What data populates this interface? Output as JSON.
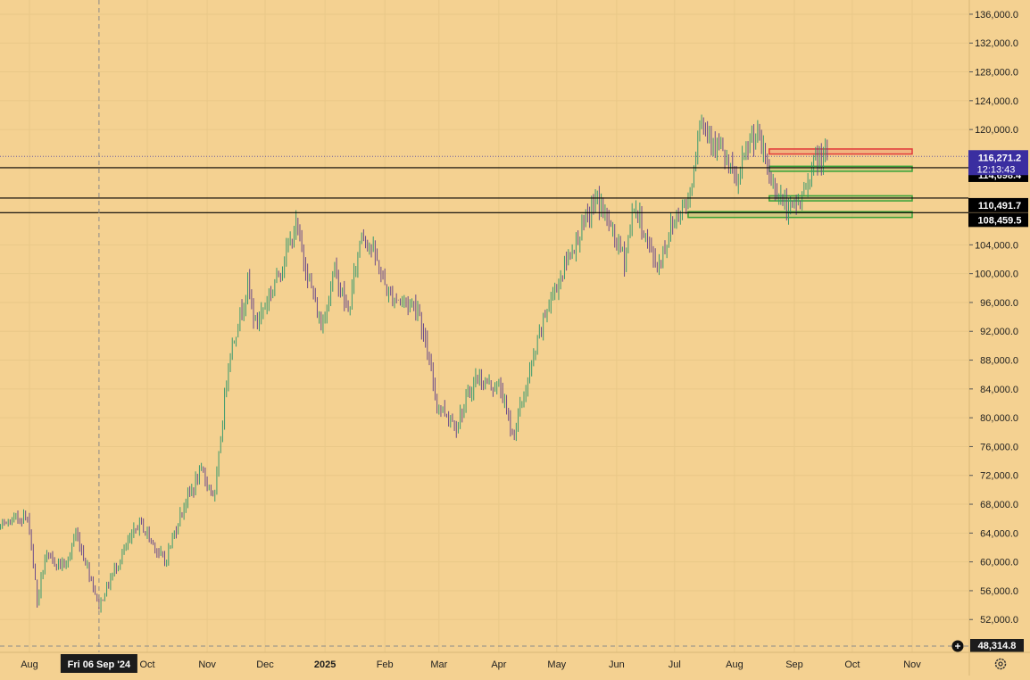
{
  "colors": {
    "background": "#f4d191",
    "grid": "#e9c888",
    "axis_text": "#1e1e1e",
    "up_candle": "#3a9a6e",
    "down_candle": "#6b4a8a",
    "level_line": "#000000",
    "last_price_bg": "#3a2ea0",
    "level_label_bg": "#000000",
    "resistance_zone": "#e23a3a",
    "support_zone": "#3aa33a",
    "crosshair": "#8a8a8a"
  },
  "chart_data": {
    "type": "candlestick",
    "title": "",
    "y_scale": "linear",
    "ylim": [
      48314.8,
      137500
    ],
    "y_ticks": [
      {
        "value": 52000,
        "label": "52,000.0"
      },
      {
        "value": 56000,
        "label": "56,000.0"
      },
      {
        "value": 60000,
        "label": "60,000.0"
      },
      {
        "value": 64000,
        "label": "64,000.0"
      },
      {
        "value": 68000,
        "label": "68,000.0"
      },
      {
        "value": 72000,
        "label": "72,000.0"
      },
      {
        "value": 76000,
        "label": "76,000.0"
      },
      {
        "value": 80000,
        "label": "80,000.0"
      },
      {
        "value": 84000,
        "label": "84,000.0"
      },
      {
        "value": 88000,
        "label": "88,000.0"
      },
      {
        "value": 92000,
        "label": "92,000.0"
      },
      {
        "value": 96000,
        "label": "96,000.0"
      },
      {
        "value": 100000,
        "label": "100,000.0"
      },
      {
        "value": 104000,
        "label": "104,000.0"
      },
      {
        "value": 120000,
        "label": "120,000.0"
      },
      {
        "value": 124000,
        "label": "124,000.0"
      },
      {
        "value": 128000,
        "label": "128,000.0"
      },
      {
        "value": 132000,
        "label": "132,000.0"
      },
      {
        "value": 136000,
        "label": "136,000.0"
      }
    ],
    "x_ticks": [
      {
        "date": "2024-08-01",
        "label": "Aug",
        "bold": false
      },
      {
        "date": "2024-10-01",
        "label": "Oct",
        "bold": false
      },
      {
        "date": "2024-11-01",
        "label": "Nov",
        "bold": false
      },
      {
        "date": "2024-12-01",
        "label": "Dec",
        "bold": false
      },
      {
        "date": "2025-01-01",
        "label": "2025",
        "bold": true
      },
      {
        "date": "2025-02-01",
        "label": "Feb",
        "bold": false
      },
      {
        "date": "2025-03-01",
        "label": "Mar",
        "bold": false
      },
      {
        "date": "2025-04-01",
        "label": "Apr",
        "bold": false
      },
      {
        "date": "2025-05-01",
        "label": "May",
        "bold": false
      },
      {
        "date": "2025-06-01",
        "label": "Jun",
        "bold": false
      },
      {
        "date": "2025-07-01",
        "label": "Jul",
        "bold": false
      },
      {
        "date": "2025-08-01",
        "label": "Aug",
        "bold": false
      },
      {
        "date": "2025-09-01",
        "label": "Sep",
        "bold": false
      },
      {
        "date": "2025-10-01",
        "label": "Oct",
        "bold": false
      },
      {
        "date": "2025-11-01",
        "label": "Nov",
        "bold": false
      }
    ],
    "crosshair": {
      "date": "2024-09-06",
      "label": "Fri 06 Sep '24"
    },
    "last_price": {
      "value": 116271.2,
      "label": "116,271.2",
      "countdown": "12:13:43"
    },
    "horizontal_levels": [
      {
        "value": 114698.4,
        "label": "114,698.4"
      },
      {
        "value": 110491.7,
        "label": "110,491.7"
      },
      {
        "value": 108459.5,
        "label": "108,459.5"
      }
    ],
    "axis_bottom_value": {
      "value": 48314.8,
      "label": "48,314.8"
    },
    "zones": [
      {
        "kind": "resistance",
        "start": "2025-08-19",
        "end": "2025-11-01",
        "low": 116600,
        "high": 117300
      },
      {
        "kind": "support",
        "start": "2025-08-19",
        "end": "2025-11-01",
        "low": 114200,
        "high": 114900
      },
      {
        "kind": "support",
        "start": "2025-08-19",
        "end": "2025-11-01",
        "low": 110100,
        "high": 110800
      },
      {
        "kind": "support",
        "start": "2025-07-08",
        "end": "2025-11-01",
        "low": 107800,
        "high": 108600
      }
    ],
    "daily_anchor_closes": [
      [
        "2024-07-01",
        63000
      ],
      [
        "2024-07-15",
        64500
      ],
      [
        "2024-07-29",
        66500
      ],
      [
        "2024-08-01",
        65000
      ],
      [
        "2024-08-05",
        54500
      ],
      [
        "2024-08-09",
        60500
      ],
      [
        "2024-08-20",
        59500
      ],
      [
        "2024-08-25",
        64000
      ],
      [
        "2024-09-01",
        58500
      ],
      [
        "2024-09-06",
        53900
      ],
      [
        "2024-09-15",
        59500
      ],
      [
        "2024-09-27",
        65500
      ],
      [
        "2024-10-10",
        60000
      ],
      [
        "2024-10-20",
        68000
      ],
      [
        "2024-10-29",
        72500
      ],
      [
        "2024-11-05",
        69000
      ],
      [
        "2024-11-12",
        88000
      ],
      [
        "2024-11-22",
        98500
      ],
      [
        "2024-11-26",
        93000
      ],
      [
        "2024-12-05",
        98000
      ],
      [
        "2024-12-17",
        106500
      ],
      [
        "2024-12-30",
        92500
      ],
      [
        "2025-01-06",
        100500
      ],
      [
        "2025-01-13",
        94500
      ],
      [
        "2025-01-20",
        106000
      ],
      [
        "2025-01-26",
        103000
      ],
      [
        "2025-02-03",
        97000
      ],
      [
        "2025-02-18",
        95500
      ],
      [
        "2025-02-28",
        82000
      ],
      [
        "2025-03-10",
        79000
      ],
      [
        "2025-03-20",
        85500
      ],
      [
        "2025-04-02",
        84000
      ],
      [
        "2025-04-08",
        77500
      ],
      [
        "2025-04-15",
        84000
      ],
      [
        "2025-04-25",
        94500
      ],
      [
        "2025-05-08",
        103000
      ],
      [
        "2025-05-22",
        110500
      ],
      [
        "2025-06-05",
        102000
      ],
      [
        "2025-06-10",
        109500
      ],
      [
        "2025-06-22",
        100800
      ],
      [
        "2025-06-30",
        107000
      ],
      [
        "2025-07-09",
        111000
      ],
      [
        "2025-07-14",
        121500
      ],
      [
        "2025-07-24",
        117500
      ],
      [
        "2025-08-02",
        112500
      ],
      [
        "2025-08-10",
        119000
      ],
      [
        "2025-08-14",
        118500
      ],
      [
        "2025-08-19",
        113500
      ],
      [
        "2025-08-29",
        108500
      ],
      [
        "2025-09-05",
        110500
      ],
      [
        "2025-09-11",
        115500
      ],
      [
        "2025-09-18",
        116271.2
      ]
    ]
  }
}
